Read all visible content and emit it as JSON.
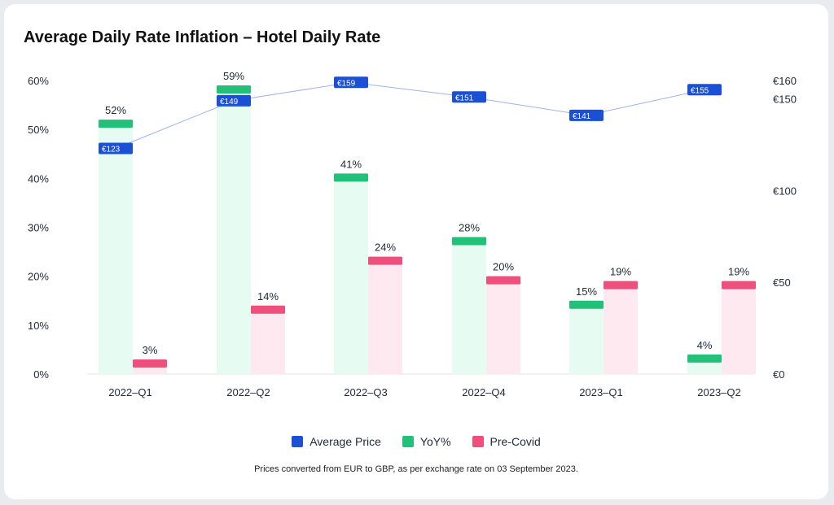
{
  "title": "Average Daily Rate Inflation – Hotel Daily Rate",
  "footnote": "Prices converted from EUR to GBP, as per exchange rate on 03 September 2023.",
  "colors": {
    "average_price": "#1a4fd6",
    "yoy": "#22c17a",
    "yoy_fill": "#e6fbf1",
    "pre_covid": "#ef4f7c",
    "pre_covid_fill": "#fde9ef",
    "line": "#9db3ec"
  },
  "legend": [
    {
      "label": "Average Price",
      "color": "#1a4fd6"
    },
    {
      "label": "YoY%",
      "color": "#22c17a"
    },
    {
      "label": "Pre-Covid",
      "color": "#ef4f7c"
    }
  ],
  "chart_data": {
    "type": "bar",
    "categories": [
      "2022–Q1",
      "2022–Q2",
      "2022–Q3",
      "2022–Q4",
      "2023–Q1",
      "2023–Q2"
    ],
    "series": [
      {
        "name": "YoY%",
        "axis": "left",
        "type": "bar",
        "values": [
          52,
          59,
          41,
          28,
          15,
          4
        ],
        "labels": [
          "52%",
          "59%",
          "41%",
          "28%",
          "15%",
          "4%"
        ]
      },
      {
        "name": "Pre-Covid",
        "axis": "left",
        "type": "bar",
        "values": [
          3,
          14,
          24,
          20,
          19,
          19
        ],
        "labels": [
          "3%",
          "14%",
          "24%",
          "20%",
          "19%",
          "19%"
        ]
      },
      {
        "name": "Average Price",
        "axis": "right",
        "type": "line",
        "values": [
          123,
          149,
          159,
          151,
          141,
          155
        ],
        "labels": [
          "€123",
          "€149",
          "€159",
          "€151",
          "€141",
          "€155"
        ]
      }
    ],
    "y_left": {
      "min": 0,
      "max": 60,
      "ticks": [
        0,
        10,
        20,
        30,
        40,
        50,
        60
      ],
      "tick_labels": [
        "0%",
        "10%",
        "20%",
        "30%",
        "40%",
        "50%",
        "60%"
      ]
    },
    "y_right": {
      "min": 0,
      "max": 160,
      "ticks": [
        0,
        50,
        100,
        150,
        160
      ],
      "tick_labels": [
        "€0",
        "€50",
        "€100",
        "€150",
        "€160"
      ]
    },
    "grid": false,
    "legend_position": "bottom"
  }
}
